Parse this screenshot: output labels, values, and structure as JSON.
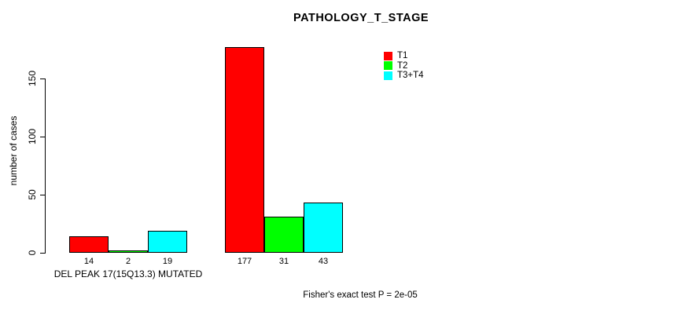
{
  "title": "PATHOLOGY_T_STAGE",
  "y_axis": {
    "label": "number of cases"
  },
  "legend": {
    "items": [
      {
        "label": "T1",
        "color": "#FF0000"
      },
      {
        "label": "T2",
        "color": "#00FF00"
      },
      {
        "label": "T3+T4",
        "color": "#00FFFF"
      }
    ]
  },
  "footer": {
    "text": "Fisher's exact test P = 2e-05"
  },
  "chart_data": {
    "type": "bar",
    "title": "PATHOLOGY_T_STAGE",
    "xlabel": "",
    "ylabel": "number of cases",
    "ylim": [
      0,
      180
    ],
    "yticks": [
      0,
      50,
      100,
      150
    ],
    "grid": false,
    "legend_position": "top-right-inside",
    "categories": [
      "DEL PEAK 17(15Q13.3) MUTATED",
      ""
    ],
    "series": [
      {
        "name": "T1",
        "color": "#FF0000",
        "values": [
          14,
          177
        ]
      },
      {
        "name": "T2",
        "color": "#00FF00",
        "values": [
          2,
          31
        ]
      },
      {
        "name": "T3+T4",
        "color": "#00FFFF",
        "values": [
          19,
          43
        ]
      }
    ],
    "groups": [
      {
        "label": "DEL PEAK 17(15Q13.3) MUTATED",
        "values": [
          14,
          2,
          19
        ]
      },
      {
        "label": "",
        "values": [
          177,
          31,
          43
        ]
      }
    ],
    "annotation": "Fisher's exact test P = 2e-05"
  }
}
